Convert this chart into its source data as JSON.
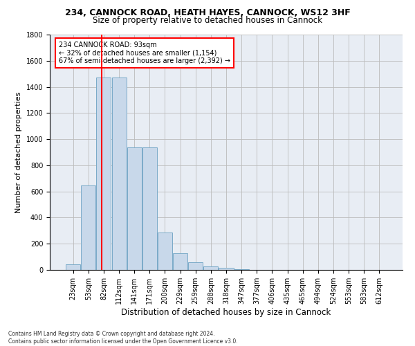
{
  "title_line1": "234, CANNOCK ROAD, HEATH HAYES, CANNOCK, WS12 3HF",
  "title_line2": "Size of property relative to detached houses in Cannock",
  "xlabel": "Distribution of detached houses by size in Cannock",
  "ylabel": "Number of detached properties",
  "footnote": "Contains HM Land Registry data © Crown copyright and database right 2024.\nContains public sector information licensed under the Open Government Licence v3.0.",
  "bin_labels": [
    "23sqm",
    "53sqm",
    "82sqm",
    "112sqm",
    "141sqm",
    "171sqm",
    "200sqm",
    "229sqm",
    "259sqm",
    "288sqm",
    "318sqm",
    "347sqm",
    "377sqm",
    "406sqm",
    "435sqm",
    "465sqm",
    "494sqm",
    "524sqm",
    "553sqm",
    "583sqm",
    "612sqm"
  ],
  "bar_heights": [
    40,
    645,
    1470,
    1470,
    935,
    935,
    285,
    125,
    60,
    25,
    15,
    5,
    0,
    0,
    0,
    0,
    0,
    0,
    0,
    0,
    0
  ],
  "bar_color": "#c8d8ea",
  "bar_edgecolor": "#7aaac8",
  "grid_color": "#bbbbbb",
  "background_color": "#e8edf4",
  "vline_color": "red",
  "annotation_text": "234 CANNOCK ROAD: 93sqm\n← 32% of detached houses are smaller (1,154)\n67% of semi-detached houses are larger (2,392) →",
  "ylim": [
    0,
    1800
  ],
  "yticks": [
    0,
    200,
    400,
    600,
    800,
    1000,
    1200,
    1400,
    1600,
    1800
  ],
  "title1_fontsize": 9,
  "title2_fontsize": 8.5,
  "ylabel_fontsize": 8,
  "xlabel_fontsize": 8.5,
  "tick_fontsize": 7,
  "footnote_fontsize": 5.5
}
